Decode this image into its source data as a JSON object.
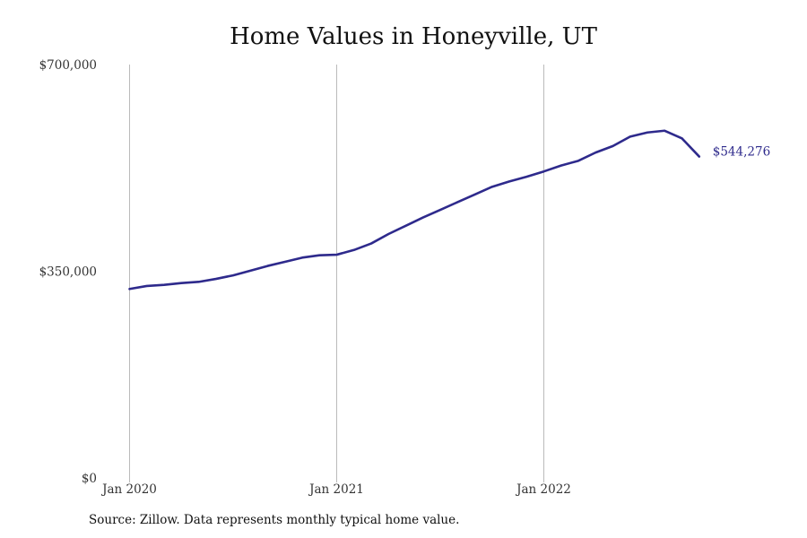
{
  "chart_data": {
    "type": "line",
    "title": "Home Values in Honeyville, UT",
    "xlabel": "",
    "ylabel": "",
    "ylim": [
      0,
      700000
    ],
    "yticks": [
      0,
      350000,
      700000
    ],
    "ytick_labels": [
      "$0",
      "$350,000",
      "$700,000"
    ],
    "xticks": [
      {
        "x": "2020-01",
        "label": "Jan 2020"
      },
      {
        "x": "2021-01",
        "label": "Jan 2021"
      },
      {
        "x": "2022-01",
        "label": "Jan 2022"
      }
    ],
    "grid": "vertical lines at x tick marks",
    "line_color": "#2e2a8c",
    "grid_color": "#bbbbbb",
    "series": [
      {
        "x": [
          "2020-01",
          "2020-02",
          "2020-03",
          "2020-04",
          "2020-05",
          "2020-06",
          "2020-07",
          "2020-08",
          "2020-09",
          "2020-10",
          "2020-11",
          "2020-12",
          "2021-01",
          "2021-02",
          "2021-03",
          "2021-04",
          "2021-05",
          "2021-06",
          "2021-07",
          "2021-08",
          "2021-09",
          "2021-10",
          "2021-11",
          "2021-12",
          "2022-01",
          "2022-02",
          "2022-03",
          "2022-04",
          "2022-05",
          "2022-06",
          "2022-07",
          "2022-08",
          "2022-09",
          "2022-10"
        ],
        "values": [
          320000,
          325000,
          327000,
          330000,
          332000,
          337000,
          343000,
          351000,
          359000,
          366000,
          373000,
          377000,
          378000,
          386000,
          397000,
          413000,
          427000,
          441000,
          454000,
          467000,
          480000,
          493000,
          502000,
          510000,
          519000,
          529000,
          537000,
          551000,
          562000,
          578000,
          585000,
          588000,
          575000,
          544276
        ]
      }
    ],
    "annotations": [
      {
        "x": "2022-10",
        "y": 544276,
        "text": "$544,276"
      }
    ],
    "source": "Source: Zillow. Data represents monthly typical home value."
  }
}
